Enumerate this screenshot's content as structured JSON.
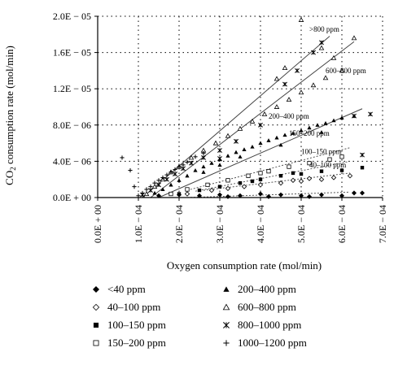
{
  "chart_data": {
    "type": "scatter",
    "title": "",
    "xlabel": "Oxygen consumption rate (mol/min)",
    "ylabel_parts": [
      "CO",
      "2",
      " consumption rate (mol/min)"
    ],
    "xlim": [
      0,
      0.0007
    ],
    "ylim": [
      0,
      2e-05
    ],
    "x_ticks": [
      {
        "value": 0.0,
        "label": "0.0E + 00"
      },
      {
        "value": 0.0001,
        "label": "1.0E − 04"
      },
      {
        "value": 0.0002,
        "label": "2.0E − 04"
      },
      {
        "value": 0.0003,
        "label": "3.0E − 04"
      },
      {
        "value": 0.0004,
        "label": "4.0E − 04"
      },
      {
        "value": 0.0005,
        "label": "5.0E − 04"
      },
      {
        "value": 0.0006,
        "label": "6.0E − 04"
      },
      {
        "value": 0.0007,
        "label": "7.0E − 04"
      }
    ],
    "y_ticks": [
      {
        "value": 0.0,
        "label": "0.0E + 00"
      },
      {
        "value": 4e-06,
        "label": "4.0E − 06"
      },
      {
        "value": 8e-06,
        "label": "8.0E − 06"
      },
      {
        "value": 1.2e-05,
        "label": "1.2E − 05"
      },
      {
        "value": 1.6e-05,
        "label": "1.6E − 05"
      },
      {
        "value": 2e-05,
        "label": "2.0E − 05"
      }
    ],
    "grid": true,
    "legend_placement": "bottom",
    "series": [
      {
        "name": "<40 ppm",
        "marker": "diamond-filled",
        "points": [
          [
            0.00015,
            2e-07
          ],
          [
            0.0002,
            3e-07
          ],
          [
            0.00025,
            2e-07
          ],
          [
            0.0003,
            3e-07
          ],
          [
            0.00035,
            2e-07
          ],
          [
            0.0004,
            4e-07
          ],
          [
            0.00045,
            3e-07
          ],
          [
            0.0005,
            2e-07
          ],
          [
            0.00055,
            3e-07
          ],
          [
            0.0006,
            2e-07
          ],
          [
            0.00063,
            5e-07
          ],
          [
            0.00065,
            5e-07
          ],
          [
            0.00052,
            1e-07
          ],
          [
            0.00042,
            1e-07
          ],
          [
            0.00032,
            1e-07
          ]
        ],
        "fit": [
          [
            0.00022,
            0.0
          ],
          [
            0.00062,
            6e-07
          ]
        ]
      },
      {
        "name": "40–100 ppm",
        "marker": "diamond-open",
        "points": [
          [
            0.00022,
            4e-07
          ],
          [
            0.00028,
            8e-07
          ],
          [
            0.00032,
            1e-06
          ],
          [
            0.00036,
            1.2e-06
          ],
          [
            0.0004,
            1.4e-06
          ],
          [
            0.00045,
            1.6e-06
          ],
          [
            0.0005,
            1.8e-06
          ],
          [
            0.00055,
            2e-06
          ],
          [
            0.00058,
            2.2e-06
          ],
          [
            0.00062,
            2.4e-06
          ],
          [
            0.00048,
            1.9e-06
          ],
          [
            0.00052,
            2.1e-06
          ]
        ],
        "fit": [
          [
            0.00026,
            8e-07
          ],
          [
            0.00062,
            2.7e-06
          ]
        ]
      },
      {
        "name": "100–150 ppm",
        "marker": "square-filled",
        "points": [
          [
            0.0002,
            4e-07
          ],
          [
            0.00025,
            8e-07
          ],
          [
            0.0003,
            1.2e-06
          ],
          [
            0.00035,
            1.6e-06
          ],
          [
            0.0004,
            2e-06
          ],
          [
            0.00045,
            2.4e-06
          ],
          [
            0.0005,
            2.6e-06
          ],
          [
            0.00055,
            2.9e-06
          ],
          [
            0.0006,
            3e-06
          ],
          [
            0.00065,
            3.3e-06
          ],
          [
            0.00038,
            1.8e-06
          ],
          [
            0.00048,
            2.7e-06
          ]
        ],
        "fit": [
          [
            0.00024,
            7e-07
          ],
          [
            0.00062,
            4e-06
          ]
        ]
      },
      {
        "name": "150–200 ppm",
        "marker": "square-open",
        "points": [
          [
            0.00018,
            4e-07
          ],
          [
            0.00022,
            9e-07
          ],
          [
            0.00027,
            1.4e-06
          ],
          [
            0.00032,
            1.9e-06
          ],
          [
            0.00037,
            2.4e-06
          ],
          [
            0.00042,
            2.9e-06
          ],
          [
            0.00047,
            3.4e-06
          ],
          [
            0.00052,
            3.8e-06
          ],
          [
            0.00057,
            4.2e-06
          ],
          [
            0.0006,
            4.5e-06
          ],
          [
            0.0004,
            2.7e-06
          ]
        ],
        "fit": [
          [
            0.00022,
            8e-07
          ],
          [
            0.00062,
            5.5e-06
          ]
        ]
      },
      {
        "name": "200–400 ppm",
        "marker": "triangle-filled",
        "points": [
          [
            0.00014,
            5e-07
          ],
          [
            0.00016,
            9e-07
          ],
          [
            0.00018,
            1.4e-06
          ],
          [
            0.0002,
            1.9e-06
          ],
          [
            0.00022,
            2.4e-06
          ],
          [
            0.00024,
            3e-06
          ],
          [
            0.00026,
            3.4e-06
          ],
          [
            0.00028,
            3.8e-06
          ],
          [
            0.0003,
            4.2e-06
          ],
          [
            0.00032,
            4.6e-06
          ],
          [
            0.00034,
            5e-06
          ],
          [
            0.00036,
            5.3e-06
          ],
          [
            0.00038,
            5.6e-06
          ],
          [
            0.0004,
            6e-06
          ],
          [
            0.00042,
            6.3e-06
          ],
          [
            0.00044,
            6.6e-06
          ],
          [
            0.00046,
            6.9e-06
          ],
          [
            0.00048,
            7.1e-06
          ],
          [
            0.0005,
            7.4e-06
          ],
          [
            0.00052,
            7.7e-06
          ],
          [
            0.00054,
            8e-06
          ],
          [
            0.00056,
            8.2e-06
          ],
          [
            0.00058,
            8.5e-06
          ],
          [
            0.0006,
            8.8e-06
          ],
          [
            0.00063,
            9e-06
          ],
          [
            0.00026,
            2.8e-06
          ],
          [
            0.0003,
            3.6e-06
          ],
          [
            0.00035,
            4.5e-06
          ],
          [
            0.00045,
            5.8e-06
          ],
          [
            0.00055,
            7.2e-06
          ]
        ],
        "fit": [
          [
            0.00015,
            0.0
          ],
          [
            0.00065,
            9.8e-06
          ]
        ]
      },
      {
        "name": "600–800 ppm",
        "marker": "triangle-open",
        "points": [
          [
            0.00012,
            4e-07
          ],
          [
            0.00014,
            1.2e-06
          ],
          [
            0.00016,
            2e-06
          ],
          [
            0.00018,
            2.8e-06
          ],
          [
            0.0002,
            3.4e-06
          ],
          [
            0.00023,
            4.4e-06
          ],
          [
            0.00026,
            5.2e-06
          ],
          [
            0.00029,
            6e-06
          ],
          [
            0.00032,
            6.8e-06
          ],
          [
            0.00035,
            7.6e-06
          ],
          [
            0.00038,
            8.4e-06
          ],
          [
            0.00041,
            9.2e-06
          ],
          [
            0.00044,
            1e-05
          ],
          [
            0.00047,
            1.08e-05
          ],
          [
            0.0005,
            1.16e-05
          ],
          [
            0.00053,
            1.24e-05
          ],
          [
            0.00056,
            1.32e-05
          ],
          [
            0.0006,
            1.4e-05
          ],
          [
            0.00063,
            1.76e-05
          ],
          [
            0.0005,
            1.96e-05
          ],
          [
            0.00055,
            1.65e-05
          ],
          [
            0.00044,
            1.31e-05
          ],
          [
            0.00046,
            1.43e-05
          ],
          [
            0.00058,
            1.54e-05
          ]
        ],
        "fit": [
          [
            0.00013,
            0.0
          ],
          [
            0.00063,
            1.72e-05
          ]
        ]
      },
      {
        "name": "800–1000 ppm",
        "marker": "asterisk",
        "points": [
          [
            0.00011,
            3e-07
          ],
          [
            0.00013,
            8e-07
          ],
          [
            0.00015,
            1.4e-06
          ],
          [
            0.00017,
            2e-06
          ],
          [
            0.00019,
            2.6e-06
          ],
          [
            0.00021,
            3.2e-06
          ],
          [
            0.00023,
            3.8e-06
          ],
          [
            0.00026,
            4.4e-06
          ],
          [
            0.0003,
            5.2e-06
          ],
          [
            0.00034,
            6.2e-06
          ],
          [
            0.0004,
            8e-06
          ],
          [
            0.00046,
            1.25e-05
          ],
          [
            0.00049,
            1.4e-05
          ],
          [
            0.00053,
            1.6e-05
          ],
          [
            0.00055,
            1.71e-05
          ],
          [
            0.00065,
            4.7e-06
          ],
          [
            0.00063,
            9e-06
          ],
          [
            0.00067,
            9.2e-06
          ],
          [
            0.0003,
            4.3e-06
          ]
        ],
        "fit": [
          [
            0.00011,
            0.0
          ],
          [
            0.00057,
            1.78e-05
          ]
        ]
      },
      {
        "name": "1000–1200 ppm",
        "marker": "plus",
        "points": [
          [
            0.0001,
            2e-07
          ],
          [
            0.00011,
            5e-07
          ],
          [
            0.00012,
            9e-07
          ],
          [
            0.00013,
            1.2e-06
          ],
          [
            0.00014,
            1.6e-06
          ],
          [
            0.00015,
            1.9e-06
          ],
          [
            0.00016,
            2.2e-06
          ],
          [
            0.00017,
            2.5e-06
          ],
          [
            0.00018,
            2.8e-06
          ],
          [
            0.00019,
            3.1e-06
          ],
          [
            0.0002,
            3.4e-06
          ],
          [
            0.00021,
            3.6e-06
          ],
          [
            0.00022,
            3.9e-06
          ],
          [
            0.00024,
            4.5e-06
          ],
          [
            0.00026,
            4.9e-06
          ],
          [
            8e-05,
            3e-06
          ],
          [
            6e-05,
            4.4e-06
          ],
          [
            9e-05,
            1.2e-06
          ]
        ]
      }
    ],
    "annotations": [
      {
        "text": ">800 ppm",
        "x": 0.00052,
        "y": 1.83e-05
      },
      {
        "text": "600–800 ppm",
        "x": 0.00056,
        "y": 1.37e-05
      },
      {
        "text": "200–400 ppm",
        "x": 0.00042,
        "y": 8.7e-06
      },
      {
        "text": "150–200 ppm",
        "x": 0.00047,
        "y": 6.8e-06
      },
      {
        "text": "100–150 ppm",
        "x": 0.0005,
        "y": 4.8e-06
      },
      {
        "text": "40–100 ppm",
        "x": 0.00052,
        "y": 3.3e-06
      }
    ]
  }
}
